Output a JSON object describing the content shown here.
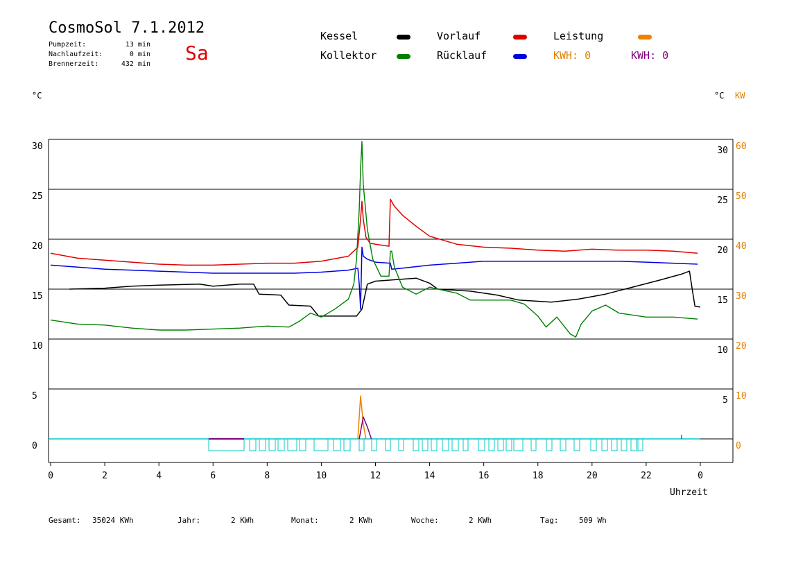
{
  "header": {
    "title": "CosmoSol 7.1.2012",
    "stats": [
      {
        "label": "Pumpzeit:",
        "value": "13 min"
      },
      {
        "label": "Nachlaufzeit:",
        "value": "0 min"
      },
      {
        "label": "Brennerzeit:",
        "value": "432 min"
      }
    ],
    "day": "Sa",
    "day_color": "#e00000"
  },
  "legend": {
    "kessel": {
      "label": "Kessel",
      "color": "#000000"
    },
    "vorlauf": {
      "label": "Vorlauf",
      "color": "#e00000"
    },
    "leistung": {
      "label": "Leistung",
      "color": "#f08000"
    },
    "kollektor": {
      "label": "Kollektor",
      "color": "#008000"
    },
    "ruecklauf": {
      "label": "Rücklauf",
      "color": "#0000e0"
    },
    "kwh1": "KWH: 0",
    "kwh1_color": "#e08000",
    "kwh2": "KWH: 0",
    "kwh2_color": "#800080"
  },
  "units": {
    "left": "°C",
    "right_c": "°C",
    "right_kw": "KW"
  },
  "footer": [
    {
      "label": "Gesamt:",
      "value": "35024 KWh"
    },
    {
      "label": "Jahr:",
      "value": "2 KWh"
    },
    {
      "label": "Monat:",
      "value": "2 KWh"
    },
    {
      "label": "Woche:",
      "value": "2 KWh"
    },
    {
      "label": "Tag:",
      "value": "509 Wh"
    }
  ],
  "chart_data": {
    "type": "line",
    "xlabel": "Uhrzeit",
    "x_ticks": [
      "0",
      "2",
      "4",
      "6",
      "8",
      "10",
      "12",
      "14",
      "16",
      "18",
      "20",
      "22",
      "0"
    ],
    "xlim": [
      0,
      24
    ],
    "ylim": [
      -2.5,
      30
    ],
    "left_ticks": [
      30,
      25,
      20,
      15,
      10,
      5,
      0
    ],
    "right_ticks_c": [
      30,
      25,
      20,
      15,
      10,
      5
    ],
    "right_ticks_kw": [
      60,
      50,
      40,
      30,
      20,
      10,
      0
    ],
    "grid": true,
    "series": [
      {
        "name": "Vorlauf",
        "color": "#e00000",
        "points": [
          [
            0,
            18.6
          ],
          [
            1,
            18.1
          ],
          [
            2,
            17.9
          ],
          [
            3,
            17.7
          ],
          [
            4,
            17.5
          ],
          [
            5,
            17.4
          ],
          [
            6,
            17.4
          ],
          [
            7,
            17.5
          ],
          [
            8,
            17.6
          ],
          [
            9,
            17.6
          ],
          [
            10,
            17.8
          ],
          [
            11,
            18.3
          ],
          [
            11.35,
            19.2
          ],
          [
            11.45,
            22
          ],
          [
            11.5,
            23.8
          ],
          [
            11.55,
            22
          ],
          [
            11.65,
            20.2
          ],
          [
            11.8,
            19.6
          ],
          [
            12,
            19.5
          ],
          [
            12.5,
            19.3
          ],
          [
            12.55,
            24.0
          ],
          [
            12.7,
            23.3
          ],
          [
            13,
            22.4
          ],
          [
            13.5,
            21.3
          ],
          [
            14,
            20.3
          ],
          [
            15,
            19.5
          ],
          [
            16,
            19.2
          ],
          [
            17,
            19.1
          ],
          [
            18,
            18.9
          ],
          [
            19,
            18.8
          ],
          [
            20,
            19.0
          ],
          [
            21,
            18.9
          ],
          [
            22,
            18.9
          ],
          [
            23,
            18.8
          ],
          [
            23.9,
            18.6
          ]
        ]
      },
      {
        "name": "Rücklauf",
        "color": "#0000e0",
        "points": [
          [
            0,
            17.4
          ],
          [
            1,
            17.2
          ],
          [
            2,
            17.0
          ],
          [
            3,
            16.9
          ],
          [
            4,
            16.8
          ],
          [
            5,
            16.7
          ],
          [
            6,
            16.6
          ],
          [
            7,
            16.6
          ],
          [
            8,
            16.6
          ],
          [
            9,
            16.6
          ],
          [
            10,
            16.7
          ],
          [
            11,
            16.9
          ],
          [
            11.35,
            17.1
          ],
          [
            11.4,
            15.5
          ],
          [
            11.45,
            13
          ],
          [
            11.5,
            19.2
          ],
          [
            11.55,
            18.3
          ],
          [
            11.7,
            18.0
          ],
          [
            12,
            17.7
          ],
          [
            12.55,
            17.6
          ],
          [
            12.6,
            17.0
          ],
          [
            13,
            17.1
          ],
          [
            14,
            17.4
          ],
          [
            15,
            17.6
          ],
          [
            16,
            17.8
          ],
          [
            17,
            17.8
          ],
          [
            18,
            17.8
          ],
          [
            19,
            17.8
          ],
          [
            20,
            17.8
          ],
          [
            21,
            17.8
          ],
          [
            22,
            17.7
          ],
          [
            23,
            17.6
          ],
          [
            23.9,
            17.5
          ]
        ]
      },
      {
        "name": "Kessel",
        "color": "#000000",
        "points": [
          [
            0.7,
            15
          ],
          [
            2,
            15.1
          ],
          [
            3,
            15.3
          ],
          [
            4,
            15.4
          ],
          [
            5.5,
            15.5
          ],
          [
            6,
            15.3
          ],
          [
            7,
            15.5
          ],
          [
            7.5,
            15.5
          ],
          [
            7.7,
            14.5
          ],
          [
            8.5,
            14.4
          ],
          [
            8.8,
            13.4
          ],
          [
            9.6,
            13.3
          ],
          [
            9.9,
            12.3
          ],
          [
            11.3,
            12.3
          ],
          [
            11.5,
            13
          ],
          [
            11.7,
            15.5
          ],
          [
            12,
            15.8
          ],
          [
            13,
            16
          ],
          [
            13.5,
            16.1
          ],
          [
            14,
            15.6
          ],
          [
            14.3,
            15
          ],
          [
            15.5,
            14.8
          ],
          [
            16.5,
            14.4
          ],
          [
            17.3,
            13.9
          ],
          [
            18.5,
            13.7
          ],
          [
            19.5,
            14
          ],
          [
            20.5,
            14.5
          ],
          [
            21.5,
            15.2
          ],
          [
            22.5,
            15.9
          ],
          [
            23.3,
            16.5
          ],
          [
            23.6,
            16.8
          ],
          [
            23.7,
            15
          ],
          [
            23.8,
            13.3
          ],
          [
            24,
            13.2
          ]
        ]
      },
      {
        "name": "Kollektor",
        "color": "#008000",
        "points": [
          [
            0,
            11.9
          ],
          [
            1,
            11.5
          ],
          [
            2,
            11.4
          ],
          [
            3,
            11.1
          ],
          [
            4,
            10.9
          ],
          [
            5,
            10.9
          ],
          [
            6,
            11.0
          ],
          [
            7,
            11.1
          ],
          [
            7.5,
            11.2
          ],
          [
            8,
            11.3
          ],
          [
            8.8,
            11.2
          ],
          [
            9.2,
            11.8
          ],
          [
            9.6,
            12.6
          ],
          [
            10,
            12.2
          ],
          [
            10.5,
            13
          ],
          [
            11,
            14
          ],
          [
            11.2,
            15.5
          ],
          [
            11.3,
            18
          ],
          [
            11.4,
            23
          ],
          [
            11.45,
            27
          ],
          [
            11.5,
            29.8
          ],
          [
            11.55,
            25.5
          ],
          [
            11.7,
            21
          ],
          [
            11.9,
            18
          ],
          [
            12.2,
            16.3
          ],
          [
            12.5,
            16.3
          ],
          [
            12.55,
            18.8
          ],
          [
            12.6,
            18.8
          ],
          [
            12.7,
            17.2
          ],
          [
            13,
            15.2
          ],
          [
            13.5,
            14.5
          ],
          [
            14,
            15.2
          ],
          [
            14.3,
            15
          ],
          [
            15,
            14.6
          ],
          [
            15.5,
            13.9
          ],
          [
            16,
            13.9
          ],
          [
            17,
            13.9
          ],
          [
            17.5,
            13.5
          ],
          [
            18,
            12.3
          ],
          [
            18.3,
            11.2
          ],
          [
            18.7,
            12.2
          ],
          [
            19.2,
            10.5
          ],
          [
            19.4,
            10.2
          ],
          [
            19.6,
            11.5
          ],
          [
            20,
            12.8
          ],
          [
            20.5,
            13.4
          ],
          [
            21,
            12.6
          ],
          [
            22,
            12.2
          ],
          [
            23,
            12.2
          ],
          [
            23.9,
            12.0
          ]
        ]
      },
      {
        "name": "Leistung",
        "color": "#f08000",
        "points": [
          [
            11.35,
            0
          ],
          [
            11.45,
            4.3
          ],
          [
            11.55,
            1.5
          ],
          [
            11.65,
            0
          ]
        ]
      },
      {
        "name": "",
        "color": "#800080",
        "points": [
          [
            11.4,
            0
          ],
          [
            11.55,
            2.2
          ],
          [
            11.7,
            1.2
          ],
          [
            11.85,
            0
          ]
        ]
      }
    ]
  }
}
